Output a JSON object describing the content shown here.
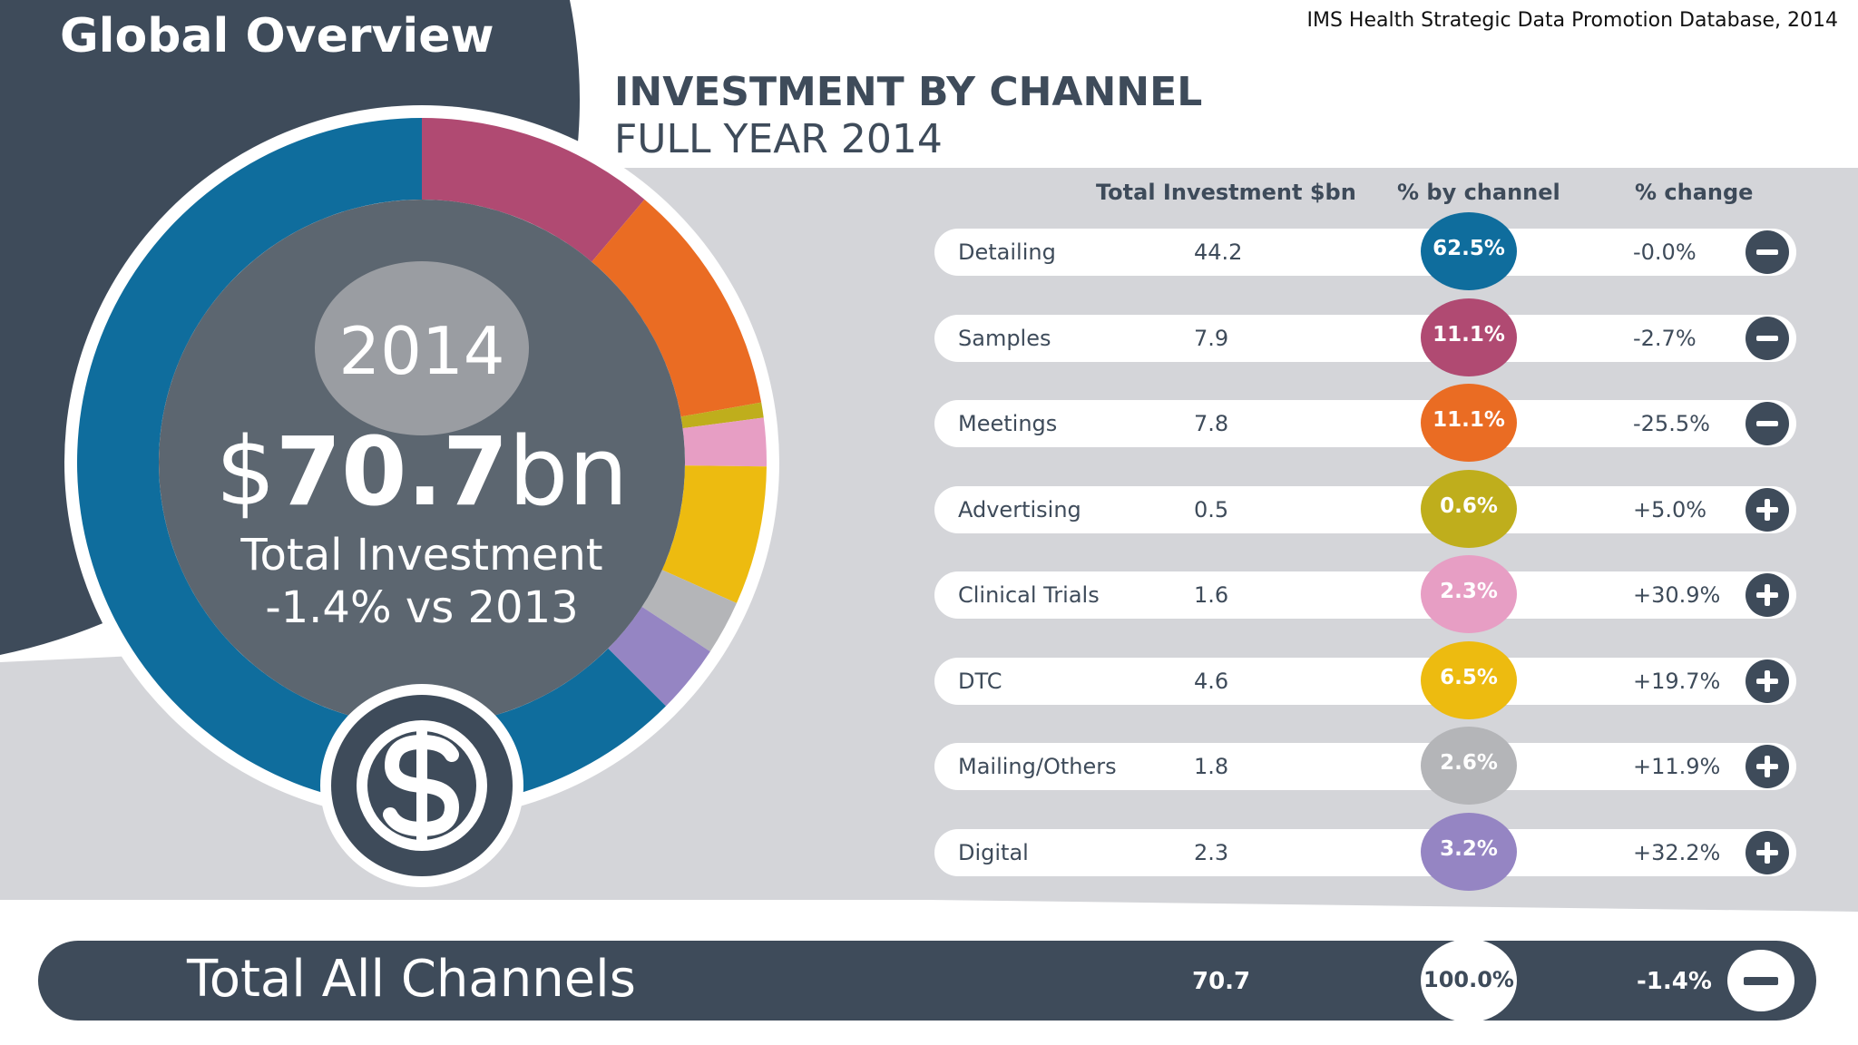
{
  "header": {
    "section_title": "Global Overview",
    "source": "IMS Health Strategic Data Promotion Database, 2014",
    "chart_title": "INVESTMENT BY CHANNEL",
    "chart_subtitle": "FULL YEAR 2014"
  },
  "donut_center": {
    "year": "2014",
    "currency": "$",
    "amount": "70.7",
    "unit": "bn",
    "caption": "Total Investment",
    "change": "-1.4% vs 2013"
  },
  "table": {
    "headers": [
      "Total Investment $bn",
      "% by channel",
      "% change"
    ]
  },
  "total": {
    "label": "Total All Channels",
    "value": "70.7",
    "pct": "100.0%",
    "change": "-1.4%",
    "sign": "minus"
  },
  "colors": {
    "background_panel": "#d4d5d9",
    "dark": "#3e4b5a",
    "center_disc": "#5c6670",
    "year_disc": "#9a9da2"
  },
  "icons": [
    "dollar-icon",
    "minus-icon",
    "plus-icon"
  ],
  "chart_data": {
    "type": "pie",
    "title": "INVESTMENT BY CHANNEL",
    "subtitle": "FULL YEAR 2014",
    "total": 70.7,
    "categories": [
      "Detailing",
      "Samples",
      "Meetings",
      "Advertising",
      "Clinical Trials",
      "DTC",
      "Mailing/Others",
      "Digital"
    ],
    "values": [
      44.2,
      7.9,
      7.8,
      0.5,
      1.6,
      4.6,
      1.8,
      2.3
    ],
    "percent_labels": [
      "62.5%",
      "11.1%",
      "11.1%",
      "0.6%",
      "2.3%",
      "6.5%",
      "2.6%",
      "3.2%"
    ],
    "percent_values": [
      62.5,
      11.1,
      11.1,
      0.6,
      2.3,
      6.5,
      2.6,
      3.2
    ],
    "value_labels": [
      "44.2",
      "7.9",
      "7.8",
      "0.5",
      "1.6",
      "4.6",
      "1.8",
      "2.3"
    ],
    "change_labels": [
      "-0.0%",
      "-2.7%",
      "-25.5%",
      "+5.0%",
      "+30.9%",
      "+19.7%",
      "+11.9%",
      "+32.2%"
    ],
    "change_signs": [
      "minus",
      "minus",
      "minus",
      "plus",
      "plus",
      "plus",
      "plus",
      "plus"
    ],
    "colors": [
      "#0f6d9d",
      "#b04a72",
      "#ea6c23",
      "#bfae1c",
      "#e79ec4",
      "#edbb10",
      "#b4b5b8",
      "#9585c3"
    ]
  }
}
